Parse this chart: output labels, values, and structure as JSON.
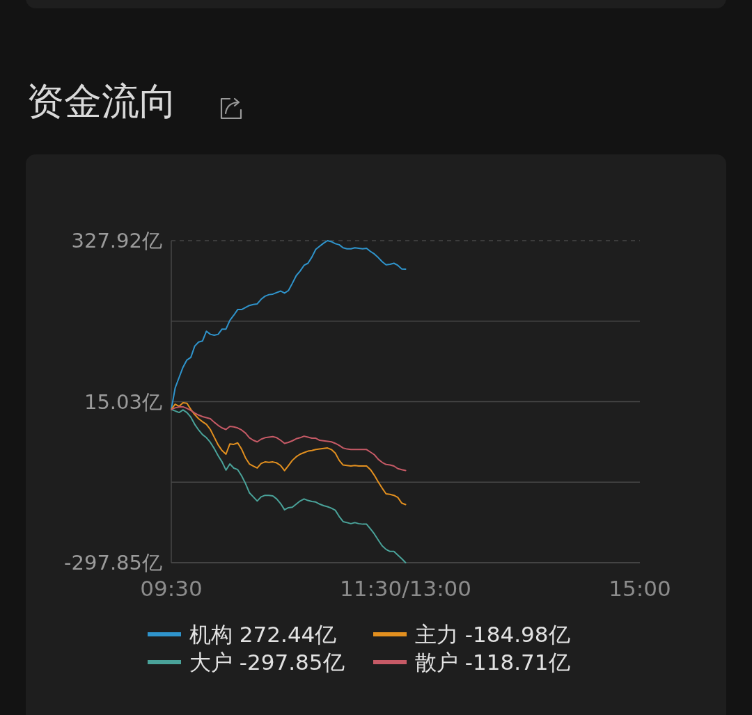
{
  "chart_data": {
    "type": "line",
    "title": "资金流向",
    "categories": [
      "09:30",
      null,
      null,
      null,
      null,
      null,
      null,
      null,
      null,
      null,
      null,
      null,
      null,
      null,
      null,
      null,
      null,
      null,
      null,
      null,
      null,
      null,
      null,
      null,
      null,
      null,
      null,
      null,
      null,
      null,
      null,
      null,
      null,
      null,
      null,
      null,
      null,
      null,
      null,
      null,
      null,
      null,
      null,
      null,
      null,
      null,
      null,
      null,
      null,
      null,
      null,
      null,
      null,
      null,
      null,
      null,
      null,
      null,
      null,
      null,
      "11:30/13:00",
      null,
      null,
      null,
      null,
      null,
      null,
      null,
      null,
      null,
      null,
      null,
      null,
      null,
      null,
      null,
      null,
      null,
      null,
      null,
      null,
      null,
      null,
      null,
      null,
      null,
      null,
      null,
      null,
      null,
      null,
      null,
      null,
      null,
      null,
      null,
      null,
      null,
      null,
      null,
      null,
      null,
      null,
      null,
      null,
      null,
      null,
      null,
      null,
      null,
      null,
      null,
      null,
      null,
      null,
      null,
      null,
      null,
      null,
      null,
      "15:00"
    ],
    "ylim": [
      -297.85,
      327.92
    ],
    "yticks": [
      {
        "value": -297.85,
        "label": "-297.85亿"
      },
      {
        "value": -141.41,
        "label": null
      },
      {
        "value": 15.03,
        "label": "15.03亿"
      },
      {
        "value": 171.48,
        "label": null
      },
      {
        "value": 327.92,
        "label": "327.92亿"
      }
    ],
    "grid": "y",
    "legend": "bottom",
    "series": [
      {
        "name": "机构 272.44亿",
        "color": "#2f94cc",
        "values": [
          0,
          42,
          62,
          82,
          96,
          101,
          123,
          131,
          133,
          152,
          146,
          144,
          146,
          156,
          156,
          173,
          183,
          194,
          194,
          198,
          202,
          204,
          205,
          214,
          220,
          223,
          224,
          227,
          230,
          226,
          231,
          245,
          260,
          269,
          280,
          284,
          296,
          311,
          317,
          323,
          327.92,
          326,
          322,
          320,
          314,
          312,
          312,
          314,
          313,
          312,
          313,
          307,
          302,
          295,
          287,
          281,
          282,
          284,
          280,
          273,
          272.44,
          null,
          null,
          null,
          null,
          null,
          null,
          null,
          null,
          null,
          null,
          null,
          null,
          null,
          null,
          null,
          null,
          null,
          null,
          null,
          null,
          null,
          null,
          null,
          null,
          null,
          null,
          null,
          null,
          null,
          null,
          null,
          null,
          null,
          null,
          null,
          null,
          null,
          null,
          null,
          null,
          null,
          null,
          null,
          null,
          null,
          null,
          null,
          null,
          null,
          null,
          null,
          null,
          null,
          null,
          null,
          null,
          null,
          null,
          null,
          null
        ]
      },
      {
        "name": "主力 -184.98亿",
        "color": "#e3901f",
        "values": [
          0,
          10,
          6,
          13,
          12,
          0,
          -10,
          -18,
          -24,
          -29,
          -39,
          -54,
          -69,
          -80,
          -87,
          -67,
          -68,
          -65,
          -77,
          -94,
          -106,
          -110,
          -114,
          -105,
          -102,
          -103,
          -102,
          -104,
          -109,
          -119,
          -109,
          -99,
          -92,
          -87,
          -84,
          -81,
          -80,
          -78,
          -77,
          -76,
          -75,
          -78,
          -85,
          -99,
          -108,
          -109,
          -110,
          -109,
          -110,
          -110,
          -110,
          -117,
          -128,
          -141,
          -153,
          -164,
          -165,
          -167,
          -171,
          -182,
          -184.98,
          null,
          null,
          null,
          null,
          null,
          null,
          null,
          null,
          null,
          null,
          null,
          null,
          null,
          null,
          null,
          null,
          null,
          null,
          null,
          null,
          null,
          null,
          null,
          null,
          null,
          null,
          null,
          null,
          null,
          null,
          null,
          null,
          null,
          null,
          null,
          null,
          null,
          null,
          null,
          null,
          null,
          null,
          null,
          null,
          null,
          null,
          null,
          null,
          null,
          null,
          null,
          null,
          null,
          null,
          null,
          null,
          null,
          null,
          null,
          null
        ]
      },
      {
        "name": "大户 -297.85亿",
        "color": "#4aa39a",
        "values": [
          0,
          -3,
          -6,
          -1,
          -6,
          -15,
          -29,
          -40,
          -49,
          -55,
          -64,
          -76,
          -90,
          -102,
          -118,
          -106,
          -114,
          -117,
          -129,
          -144,
          -162,
          -170,
          -178,
          -170,
          -167,
          -167,
          -168,
          -174,
          -183,
          -195,
          -191,
          -190,
          -184,
          -178,
          -174,
          -177,
          -179,
          -180,
          -184,
          -187,
          -189,
          -192,
          -196,
          -208,
          -218,
          -220,
          -222,
          -220,
          -222,
          -223,
          -223,
          -232,
          -242,
          -254,
          -265,
          -272,
          -276,
          -276,
          -283,
          -290,
          -297.85,
          null,
          null,
          null,
          null,
          null,
          null,
          null,
          null,
          null,
          null,
          null,
          null,
          null,
          null,
          null,
          null,
          null,
          null,
          null,
          null,
          null,
          null,
          null,
          null,
          null,
          null,
          null,
          null,
          null,
          null,
          null,
          null,
          null,
          null,
          null,
          null,
          null,
          null,
          null,
          null,
          null,
          null,
          null,
          null,
          null,
          null,
          null,
          null,
          null,
          null,
          null,
          null,
          null,
          null,
          null,
          null,
          null,
          null,
          null,
          null
        ]
      },
      {
        "name": "散户 -118.71亿",
        "color": "#c65a66",
        "values": [
          0,
          3,
          5,
          5,
          2,
          -2,
          -7,
          -11,
          -14,
          -16,
          -18,
          -25,
          -31,
          -36,
          -39,
          -33,
          -34,
          -36,
          -40,
          -46,
          -55,
          -60,
          -63,
          -58,
          -55,
          -54,
          -53,
          -55,
          -60,
          -66,
          -64,
          -61,
          -57,
          -55,
          -52,
          -54,
          -56,
          -56,
          -60,
          -61,
          -62,
          -63,
          -66,
          -70,
          -75,
          -77,
          -78,
          -78,
          -78,
          -78,
          -78,
          -83,
          -88,
          -97,
          -103,
          -107,
          -108,
          -110,
          -115,
          -117,
          -118.71,
          null,
          null,
          null,
          null,
          null,
          null,
          null,
          null,
          null,
          null,
          null,
          null,
          null,
          null,
          null,
          null,
          null,
          null,
          null,
          null,
          null,
          null,
          null,
          null,
          null,
          null,
          null,
          null,
          null,
          null,
          null,
          null,
          null,
          null,
          null,
          null,
          null,
          null,
          null,
          null,
          null,
          null,
          null,
          null,
          null,
          null,
          null,
          null,
          null,
          null,
          null,
          null,
          null,
          null,
          null,
          null,
          null,
          null,
          null,
          null
        ]
      }
    ]
  }
}
